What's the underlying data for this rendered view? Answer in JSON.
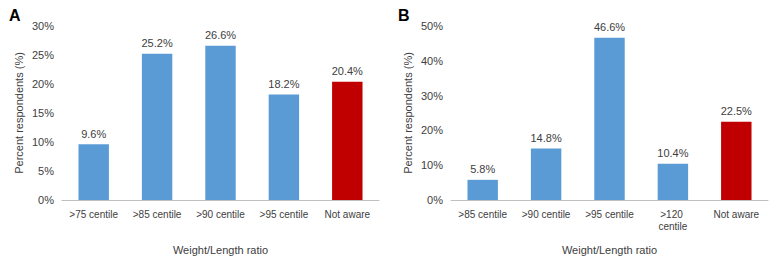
{
  "chart_data": [
    {
      "type": "bar",
      "title": "A",
      "xlabel": "Weight/Length ratio",
      "ylabel": "Percent respondents (%)",
      "categories": [
        ">75 centile",
        ">85 centile",
        ">90 centile",
        ">95 centile",
        "Not aware"
      ],
      "values": [
        9.6,
        25.2,
        26.6,
        18.2,
        20.4
      ],
      "value_labels": [
        "9.6%",
        "25.2%",
        "26.6%",
        "18.2%",
        "20.4%"
      ],
      "colors": [
        "#5b9bd5",
        "#5b9bd5",
        "#5b9bd5",
        "#5b9bd5",
        "#c00000"
      ],
      "ylim": [
        0,
        30
      ],
      "yticks": [
        {
          "value": 0,
          "label": "0%"
        },
        {
          "value": 5,
          "label": "5%"
        },
        {
          "value": 10,
          "label": "10%"
        },
        {
          "value": 15,
          "label": "15%"
        },
        {
          "value": 20,
          "label": "20%"
        },
        {
          "value": 25,
          "label": "25%"
        },
        {
          "value": 30,
          "label": "30%"
        }
      ],
      "grid": false,
      "data_labels": true
    },
    {
      "type": "bar",
      "title": "B",
      "xlabel": "Weight/Length ratio",
      "ylabel": "Percent respondents (%)",
      "categories": [
        ">85 centile",
        ">90 centile",
        ">95 centile",
        ">120 centile",
        "Not aware"
      ],
      "values": [
        5.8,
        14.8,
        46.6,
        10.4,
        22.5
      ],
      "value_labels": [
        "5.8%",
        "14.8%",
        "46.6%",
        "10.4%",
        "22.5%"
      ],
      "colors": [
        "#5b9bd5",
        "#5b9bd5",
        "#5b9bd5",
        "#5b9bd5",
        "#c00000"
      ],
      "ylim": [
        0,
        50
      ],
      "yticks": [
        {
          "value": 0,
          "label": "0%"
        },
        {
          "value": 10,
          "label": "10%"
        },
        {
          "value": 20,
          "label": "20%"
        },
        {
          "value": 30,
          "label": "30%"
        },
        {
          "value": 40,
          "label": "40%"
        },
        {
          "value": 50,
          "label": "50%"
        }
      ],
      "grid": false,
      "data_labels": true
    }
  ]
}
